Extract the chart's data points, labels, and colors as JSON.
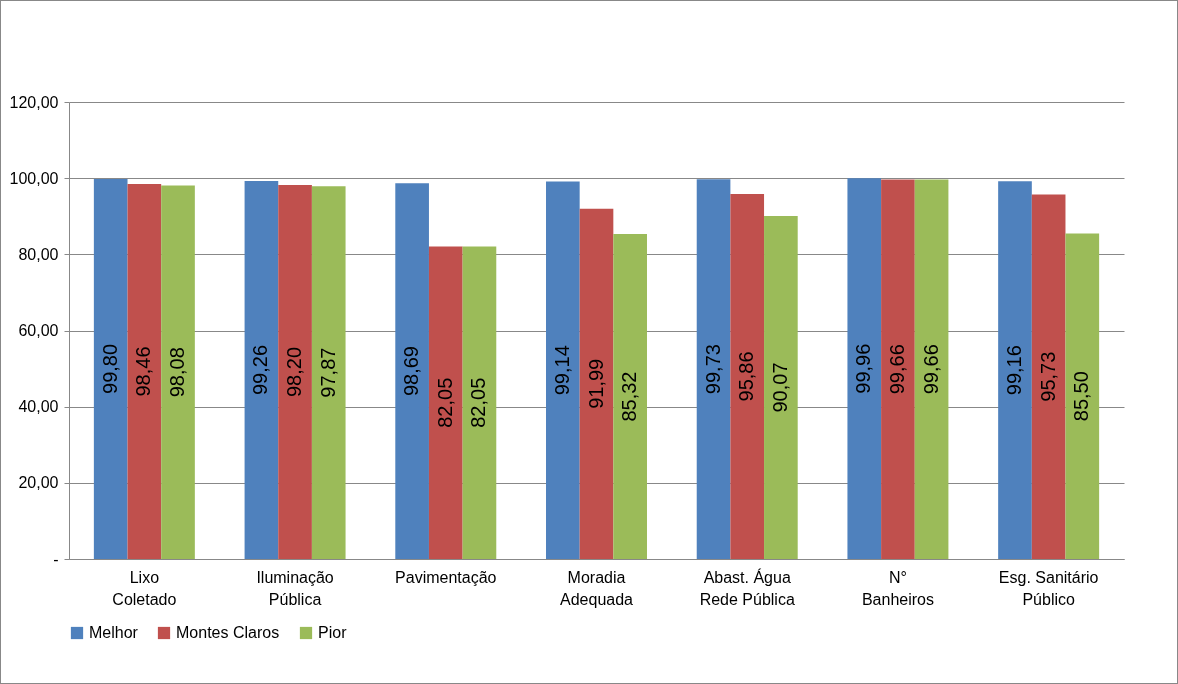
{
  "chart_data": {
    "type": "bar",
    "categories": [
      "Lixo\nColetado",
      "Iluminação\nPública",
      "Pavimentação",
      "Moradia\nAdequada",
      "Abast. Água\nRede Pública",
      "N°\nBanheiros",
      "Esg. Sanitário\nPúblico"
    ],
    "series": [
      {
        "name": "Melhor",
        "color": "#4f81bd",
        "values": [
          99.8,
          99.26,
          98.69,
          99.14,
          99.73,
          99.96,
          99.16
        ],
        "value_labels": [
          "99,80",
          "99,26",
          "98,69",
          "99,14",
          "99,73",
          "99,96",
          "99,16"
        ]
      },
      {
        "name": "Montes Claros",
        "color": "#c0504d",
        "values": [
          98.46,
          98.2,
          82.05,
          91.99,
          95.86,
          99.66,
          95.73
        ],
        "value_labels": [
          "98,46",
          "98,20",
          "82,05",
          "91,99",
          "95,86",
          "99,66",
          "95,73"
        ]
      },
      {
        "name": "Pior",
        "color": "#9bbb59",
        "values": [
          98.08,
          97.87,
          82.05,
          85.32,
          90.07,
          99.66,
          85.5
        ],
        "value_labels": [
          "98,08",
          "97,87",
          "82,05",
          "85,32",
          "90,07",
          "99,66",
          "85,50"
        ]
      }
    ],
    "ylim": [
      0,
      120
    ],
    "yticks": [
      {
        "value": 0,
        "label": "-"
      },
      {
        "value": 20,
        "label": "20,00"
      },
      {
        "value": 40,
        "label": "40,00"
      },
      {
        "value": 60,
        "label": "60,00"
      },
      {
        "value": 80,
        "label": "80,00"
      },
      {
        "value": 100,
        "label": "100,00"
      },
      {
        "value": 120,
        "label": "120,00"
      }
    ],
    "grid": "y",
    "legend": "bottom"
  }
}
